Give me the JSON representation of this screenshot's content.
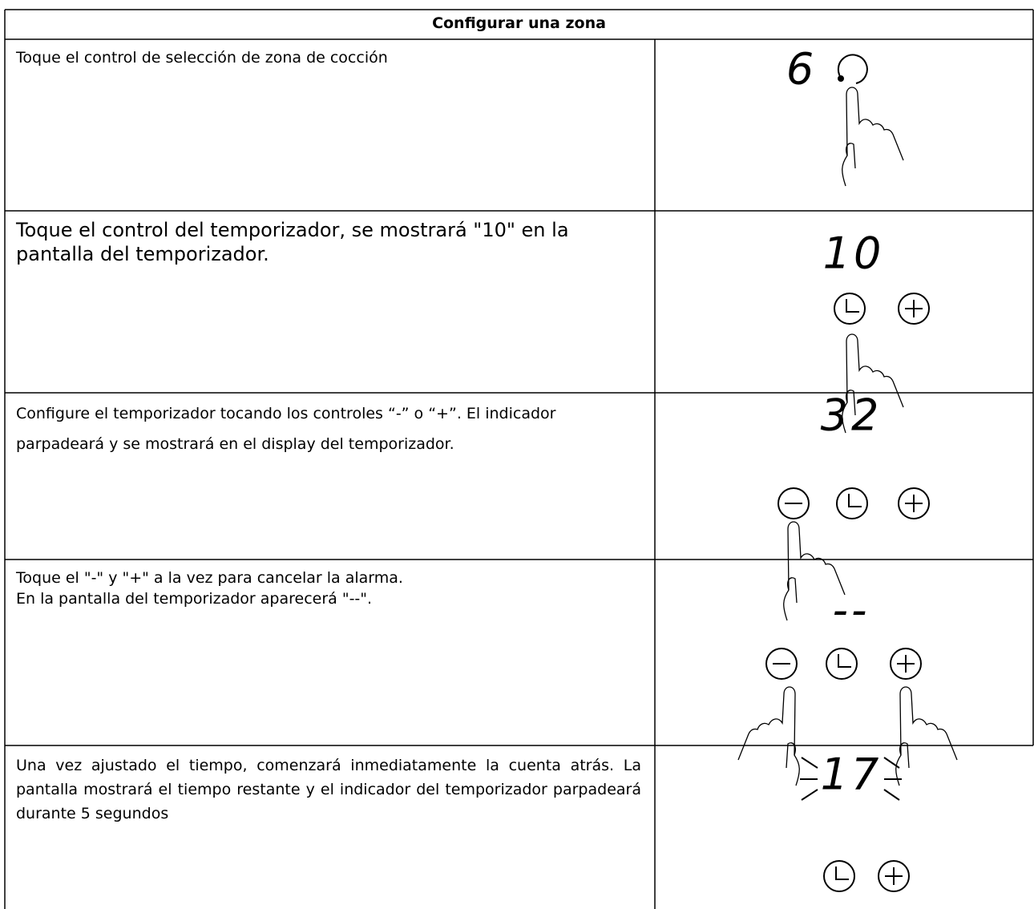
{
  "header": {
    "title": "Configurar una zona"
  },
  "rows": [
    {
      "lines": [
        "Toque el control de selección de zona de cocción"
      ],
      "display": "6"
    },
    {
      "lines": [
        "Toque el control del temporizador, se mostrará \"10\" en la pantalla del temporizador."
      ],
      "display": "10"
    },
    {
      "lines": [
        "Configure el temporizador tocando los controles “-” o “+”. El indicador parpadeará y se mostrará en el display del temporizador."
      ],
      "display": "32"
    },
    {
      "lines": [
        "Toque el \"-\" y \"+\" a la vez para cancelar la alarma.",
        "En la pantalla del temporizador aparecerá \"--\"."
      ],
      "display": "--"
    },
    {
      "lines": [
        "Una vez ajustado el tiempo, comenzará inmediatamente la cuenta atrás. La pantalla mostrará el tiempo restante y el indicador del temporizador parpadeará durante 5 segundos"
      ],
      "display": "17"
    }
  ]
}
